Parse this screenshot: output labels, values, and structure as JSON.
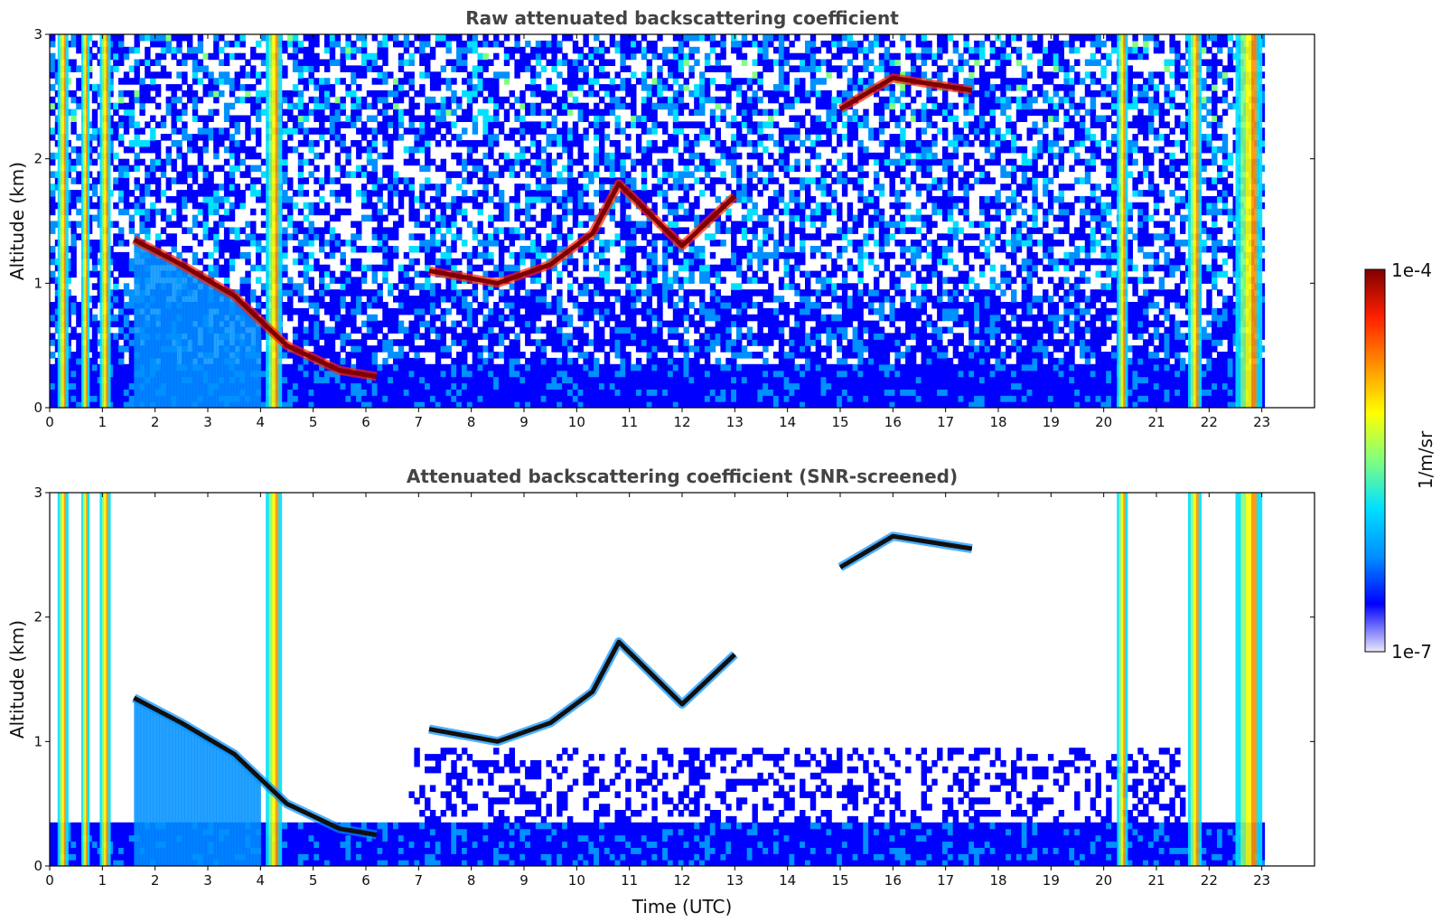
{
  "chart_data": [
    {
      "type": "heatmap",
      "title": "Raw attenuated backscattering coefficient",
      "xlabel": "",
      "ylabel": "Altitude (km)",
      "xlim": [
        0,
        24
      ],
      "ylim": [
        0,
        3
      ],
      "xticks": [
        "0",
        "1",
        "2",
        "3",
        "4",
        "5",
        "6",
        "7",
        "8",
        "9",
        "10",
        "11",
        "12",
        "13",
        "14",
        "15",
        "16",
        "17",
        "18",
        "19",
        "20",
        "21",
        "22",
        "23"
      ],
      "yticks": [
        "0",
        "1",
        "2",
        "3"
      ],
      "screened": false
    },
    {
      "type": "heatmap",
      "title": "Attenuated backscattering coefficient (SNR-screened)",
      "xlabel": "Time (UTC)",
      "ylabel": "Altitude (km)",
      "xlim": [
        0,
        24
      ],
      "ylim": [
        0,
        3
      ],
      "xticks": [
        "0",
        "1",
        "2",
        "3",
        "4",
        "5",
        "6",
        "7",
        "8",
        "9",
        "10",
        "11",
        "12",
        "13",
        "14",
        "15",
        "16",
        "17",
        "18",
        "19",
        "20",
        "21",
        "22",
        "23"
      ],
      "yticks": [
        "0",
        "1",
        "2",
        "3"
      ],
      "screened": true
    }
  ],
  "colorbar": {
    "label": "1/m/sr",
    "max_label": "1e-4",
    "min_label": "1e-7",
    "colormap": [
      "#e8e8f8",
      "#0000ff",
      "#0090ff",
      "#00e0ff",
      "#80ff80",
      "#ffff00",
      "#ff9000",
      "#ff2000",
      "#800000"
    ]
  },
  "features": {
    "cloud_layer": [
      [
        1.6,
        1.35
      ],
      [
        2.5,
        1.15
      ],
      [
        3.5,
        0.9
      ],
      [
        4.5,
        0.5
      ],
      [
        5.5,
        0.3
      ],
      [
        6.2,
        0.25
      ]
    ],
    "rising_layer": [
      [
        7.2,
        1.1
      ],
      [
        8.5,
        1.0
      ],
      [
        9.5,
        1.15
      ],
      [
        10.3,
        1.4
      ],
      [
        10.8,
        1.8
      ],
      [
        12,
        1.3
      ],
      [
        13,
        1.7
      ]
    ],
    "upper_cloud": [
      [
        15,
        2.4
      ],
      [
        16,
        2.65
      ],
      [
        17.5,
        2.55
      ]
    ],
    "columns": [
      [
        0.15,
        0.35
      ],
      [
        0.6,
        0.75
      ],
      [
        0.95,
        1.15
      ],
      [
        4.1,
        4.4
      ],
      [
        20.25,
        20.45
      ],
      [
        21.6,
        21.85
      ],
      [
        22.5,
        23.0
      ]
    ]
  }
}
